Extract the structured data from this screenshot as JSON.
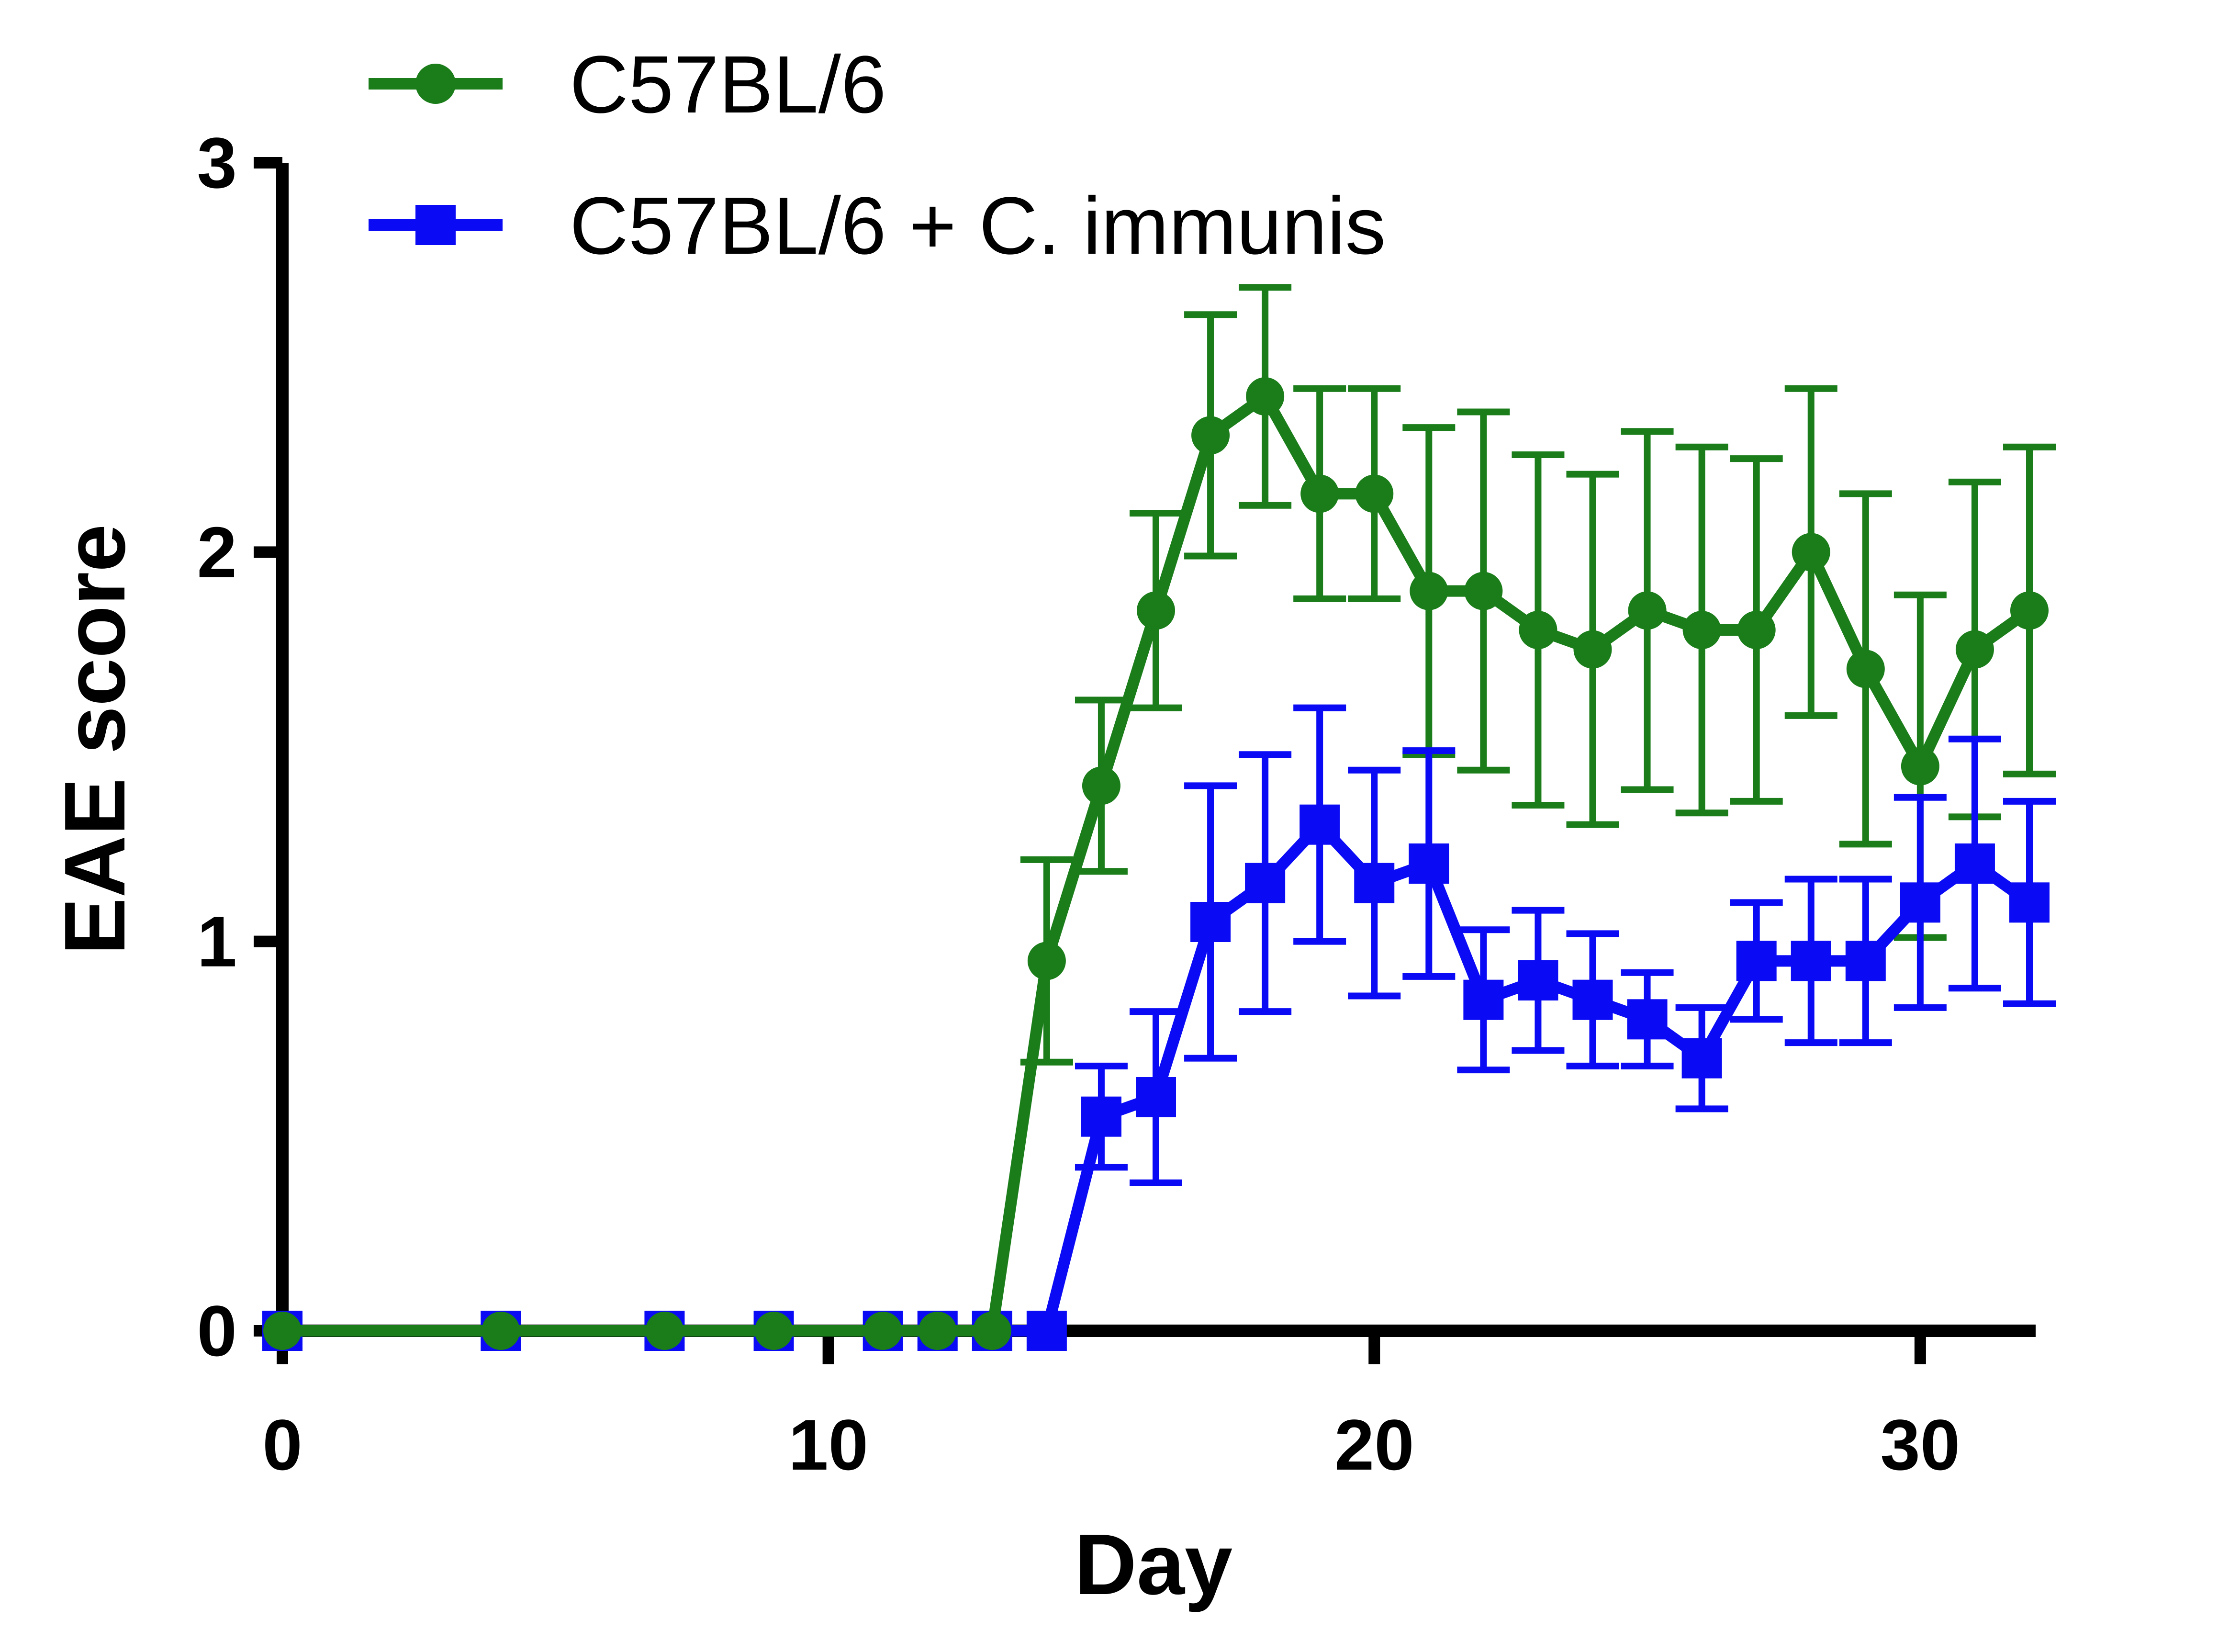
{
  "chart_data": {
    "type": "line",
    "xlabel": "Day",
    "ylabel": "EAE score",
    "xlim": [
      0,
      32
    ],
    "ylim": [
      0,
      3
    ],
    "xticks": [
      0,
      10,
      20,
      30
    ],
    "yticks": [
      0,
      1,
      2,
      3
    ],
    "grid": false,
    "legend_position": "top-left",
    "series": [
      {
        "name": "C57BL/6",
        "color": "#1a7d1a",
        "marker": "circle",
        "x": [
          0,
          4,
          7,
          9,
          11,
          12,
          13,
          14,
          15,
          16,
          17,
          18,
          19,
          20,
          21,
          22,
          23,
          24,
          25,
          26,
          27,
          28,
          29,
          30,
          31,
          32
        ],
        "y": [
          0,
          0,
          0,
          0,
          0,
          0,
          0,
          0.95,
          1.4,
          1.85,
          2.3,
          2.4,
          2.15,
          2.15,
          1.9,
          1.9,
          1.8,
          1.75,
          1.85,
          1.8,
          1.8,
          2.0,
          1.7,
          1.45,
          1.75,
          1.85
        ],
        "err": [
          0,
          0,
          0,
          0,
          0,
          0,
          0,
          0.26,
          0.22,
          0.25,
          0.31,
          0.28,
          0.27,
          0.27,
          0.42,
          0.46,
          0.45,
          0.45,
          0.46,
          0.47,
          0.44,
          0.42,
          0.45,
          0.44,
          0.43,
          0.42
        ]
      },
      {
        "name": "C57BL/6 + C. immunis",
        "color": "#0a0af5",
        "marker": "square",
        "x": [
          0,
          4,
          7,
          9,
          11,
          12,
          13,
          14,
          15,
          16,
          17,
          18,
          19,
          20,
          21,
          22,
          23,
          24,
          25,
          26,
          27,
          28,
          29,
          30,
          31,
          32
        ],
        "y": [
          0,
          0,
          0,
          0,
          0,
          0,
          0,
          0,
          0.55,
          0.6,
          1.05,
          1.15,
          1.3,
          1.15,
          1.2,
          0.85,
          0.9,
          0.85,
          0.8,
          0.7,
          0.95,
          0.95,
          0.95,
          1.1,
          1.2,
          1.1
        ],
        "err": [
          0,
          0,
          0,
          0,
          0,
          0,
          0,
          0,
          0.13,
          0.22,
          0.35,
          0.33,
          0.3,
          0.29,
          0.29,
          0.18,
          0.18,
          0.17,
          0.12,
          0.13,
          0.15,
          0.21,
          0.21,
          0.27,
          0.32,
          0.26
        ]
      }
    ]
  }
}
